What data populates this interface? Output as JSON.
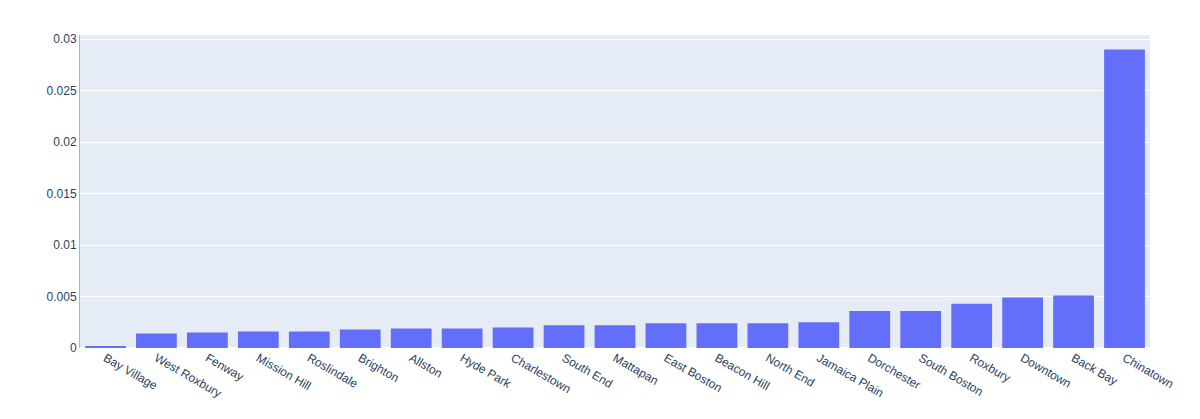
{
  "chart_data": {
    "type": "bar",
    "categories": [
      "Bay Village",
      "West Roxbury",
      "Fenway",
      "Mission Hill",
      "Roslindale",
      "Brighton",
      "Allston",
      "Hyde Park",
      "Charlestown",
      "South End",
      "Mattapan",
      "East Boston",
      "Beacon Hill",
      "North End",
      "Jamaica Plain",
      "Dorchester",
      "South Boston",
      "Roxbury",
      "Downtown",
      "Back Bay",
      "Chinatown"
    ],
    "values": [
      0.0002,
      0.0014,
      0.0015,
      0.0016,
      0.0016,
      0.0018,
      0.0019,
      0.0019,
      0.002,
      0.0022,
      0.0022,
      0.0024,
      0.0024,
      0.0024,
      0.0025,
      0.0036,
      0.0036,
      0.0043,
      0.0049,
      0.0051,
      0.029
    ],
    "color": "#636efa",
    "ylim": [
      0,
      0.0304
    ],
    "yticks": [
      0,
      0.005,
      0.01,
      0.015,
      0.02,
      0.025,
      0.03
    ],
    "grid": true
  }
}
